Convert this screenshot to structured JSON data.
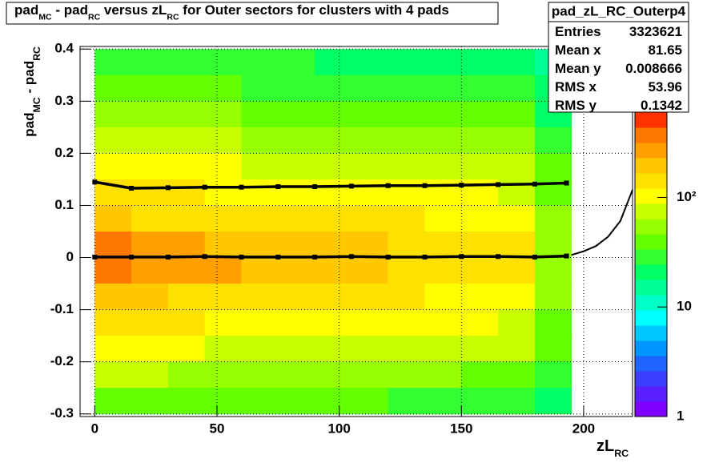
{
  "chart_data": {
    "type": "heatmap",
    "title": [
      "pad",
      "MC",
      " - pad",
      "RC",
      " versus zL",
      "RC",
      " for Outer sectors for clusters with 4 pads"
    ],
    "x_label": [
      "zL",
      "RC"
    ],
    "y_label": [
      "pad",
      "MC",
      " - pad",
      "RC"
    ],
    "xlim": [
      -6,
      220
    ],
    "ylim": [
      -0.305,
      0.405
    ],
    "xticks": [
      0,
      50,
      100,
      150,
      200
    ],
    "yticks": [
      -0.3,
      -0.2,
      -0.1,
      0,
      0.1,
      0.2,
      0.3,
      0.4
    ],
    "grid": true,
    "log_z": true,
    "zlim": [
      1,
      600
    ],
    "zticks": [
      1,
      10,
      {
        "value": 100,
        "label": "10²"
      }
    ],
    "palette": [
      "#7f00ff",
      "#5a1eff",
      "#3c3cff",
      "#1e64ff",
      "#0096ff",
      "#00c8ff",
      "#00ffff",
      "#00ffc8",
      "#00ff96",
      "#00ff64",
      "#32ff32",
      "#64ff00",
      "#96ff00",
      "#c8ff00",
      "#ffff00",
      "#ffe100",
      "#ffc800",
      "#ffa000",
      "#ff7800",
      "#ff3200"
    ],
    "xbins": [
      0,
      15,
      30,
      45,
      60,
      75,
      90,
      105,
      120,
      135,
      150,
      165,
      180,
      195
    ],
    "ybins": [
      0.4,
      0.35,
      0.3,
      0.25,
      0.2,
      0.15,
      0.1,
      0.05,
      0,
      -0.05,
      -0.1,
      -0.15,
      -0.2,
      -0.25,
      -0.3
    ],
    "z": [
      [
        25,
        25,
        25,
        25,
        25,
        25,
        22,
        22,
        22,
        20,
        20,
        20,
        15
      ],
      [
        35,
        35,
        35,
        35,
        32,
        32,
        30,
        30,
        28,
        28,
        25,
        25,
        18
      ],
      [
        50,
        50,
        50,
        48,
        45,
        45,
        42,
        40,
        40,
        38,
        35,
        35,
        22
      ],
      [
        70,
        70,
        68,
        65,
        62,
        60,
        58,
        55,
        55,
        52,
        50,
        48,
        28
      ],
      [
        100,
        100,
        95,
        90,
        85,
        82,
        80,
        78,
        75,
        72,
        70,
        65,
        35
      ],
      [
        130,
        130,
        125,
        120,
        115,
        110,
        105,
        100,
        100,
        95,
        90,
        85,
        45
      ],
      [
        170,
        165,
        160,
        155,
        150,
        140,
        135,
        130,
        125,
        120,
        115,
        110,
        55
      ],
      [
        320,
        300,
        260,
        220,
        200,
        190,
        180,
        170,
        160,
        150,
        140,
        130,
        60
      ],
      [
        330,
        310,
        270,
        230,
        200,
        190,
        180,
        170,
        160,
        150,
        140,
        130,
        60
      ],
      [
        180,
        170,
        165,
        160,
        150,
        140,
        135,
        130,
        125,
        120,
        115,
        110,
        55
      ],
      [
        130,
        130,
        125,
        120,
        115,
        110,
        105,
        100,
        100,
        95,
        90,
        85,
        45
      ],
      [
        95,
        95,
        90,
        88,
        85,
        80,
        78,
        75,
        72,
        70,
        68,
        65,
        35
      ],
      [
        65,
        65,
        62,
        60,
        58,
        55,
        52,
        50,
        50,
        48,
        45,
        42,
        25
      ],
      [
        45,
        45,
        42,
        40,
        38,
        36,
        35,
        34,
        32,
        30,
        30,
        28,
        20
      ]
    ],
    "series": [
      {
        "color": "#000000",
        "x": [
          0,
          15,
          30,
          45,
          60,
          75,
          90,
          105,
          120,
          135,
          150,
          165,
          180,
          193
        ],
        "values": [
          0.001,
          0.001,
          0.001,
          0.002,
          0.001,
          0.001,
          0.001,
          0.002,
          0.001,
          0.001,
          0.002,
          0.002,
          0.001,
          0.003
        ]
      },
      {
        "color": "#000000",
        "x": [
          0,
          15,
          30,
          45,
          60,
          75,
          90,
          105,
          120,
          135,
          150,
          165,
          180,
          193
        ],
        "values": [
          0.145,
          0.133,
          0.134,
          0.135,
          0.135,
          0.136,
          0.136,
          0.137,
          0.138,
          0.138,
          0.139,
          0.14,
          0.141,
          0.143
        ]
      },
      {
        "color": "#000000",
        "x": [
          195,
          200,
          205,
          210,
          215,
          220
        ],
        "values": [
          0.005,
          0.012,
          0.022,
          0.04,
          0.07,
          0.13
        ]
      }
    ],
    "stats": {
      "name": "pad_zL_RC_Outerp4",
      "rows": [
        [
          "Entries",
          3323621
        ],
        [
          "Mean x",
          81.65
        ],
        [
          "Mean y",
          0.008666
        ],
        [
          "RMS x",
          53.96
        ],
        [
          "RMS y",
          0.1342
        ]
      ]
    }
  }
}
